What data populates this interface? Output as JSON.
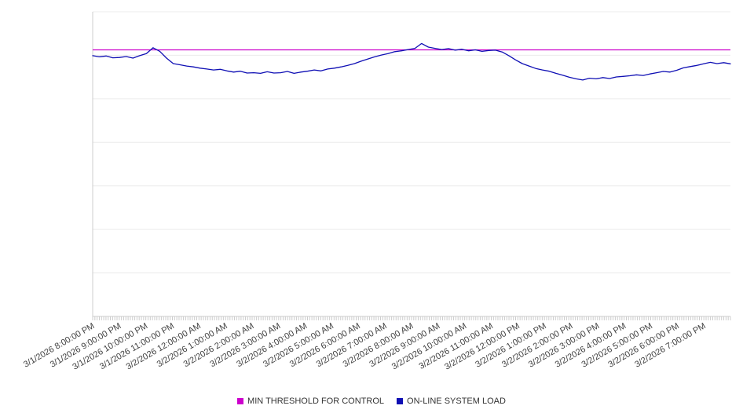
{
  "chart_data": {
    "type": "line",
    "title": "",
    "xlabel": "",
    "ylabel": "",
    "y_axis_visible": false,
    "ylim": [
      0,
      100
    ],
    "grid": {
      "horizontal_divisions": 7,
      "vertical": false,
      "minor_x_ticks": 288
    },
    "legend_position": "bottom",
    "x_label_rotation_deg": -30,
    "x_categories": [
      "3/1/2026 8:00:00 PM",
      "3/1/2026 9:00:00 PM",
      "3/1/2026 10:00:00 PM",
      "3/1/2026 11:00:00 PM",
      "3/2/2026 12:00:00 AM",
      "3/2/2026 1:00:00 AM",
      "3/2/2026 2:00:00 AM",
      "3/2/2026 3:00:00 AM",
      "3/2/2026 4:00:00 AM",
      "3/2/2026 5:00:00 AM",
      "3/2/2026 6:00:00 AM",
      "3/2/2026 7:00:00 AM",
      "3/2/2026 8:00:00 AM",
      "3/2/2026 9:00:00 AM",
      "3/2/2026 10:00:00 AM",
      "3/2/2026 11:00:00 AM",
      "3/2/2026 12:00:00 PM",
      "3/2/2026 1:00:00 PM",
      "3/2/2026 2:00:00 PM",
      "3/2/2026 3:00:00 PM",
      "3/2/2026 4:00:00 PM",
      "3/2/2026 5:00:00 PM",
      "3/2/2026 6:00:00 PM",
      "3/2/2026 7:00:00 PM"
    ],
    "series": [
      {
        "name": "MIN THRESHOLD FOR CONTROL",
        "color": "#cc00cc",
        "style": "constant-horizontal-line",
        "value": 87.5
      },
      {
        "name": "ON-LINE SYSTEM LOAD",
        "color": "#0f0fb4",
        "points_per_category": 4,
        "values": [
          85.6,
          85.2,
          85.5,
          84.9,
          85.0,
          85.3,
          84.8,
          85.6,
          86.3,
          88.2,
          87.0,
          84.8,
          83.0,
          82.6,
          82.2,
          81.9,
          81.5,
          81.2,
          80.9,
          81.1,
          80.6,
          80.2,
          80.5,
          79.9,
          80.0,
          79.8,
          80.3,
          79.9,
          80.0,
          80.4,
          79.8,
          80.2,
          80.5,
          80.9,
          80.6,
          81.2,
          81.5,
          81.9,
          82.4,
          83.0,
          83.8,
          84.5,
          85.2,
          85.8,
          86.3,
          86.9,
          87.2,
          87.6,
          88.0,
          89.6,
          88.4,
          88.0,
          87.6,
          87.9,
          87.4,
          87.7,
          87.2,
          87.5,
          87.0,
          87.3,
          87.4,
          86.8,
          85.6,
          84.2,
          83.0,
          82.2,
          81.4,
          80.9,
          80.5,
          79.8,
          79.2,
          78.5,
          78.0,
          77.6,
          78.2,
          78.0,
          78.4,
          78.1,
          78.6,
          78.8,
          79.0,
          79.3,
          79.1,
          79.6,
          80.0,
          80.4,
          80.2,
          80.8,
          81.6,
          82.0,
          82.4,
          82.9,
          83.4,
          83.0,
          83.3,
          82.9
        ]
      }
    ],
    "colors": {
      "gridline": "#ececec",
      "axis": "#cccccc",
      "tick": "#cccccc",
      "label_text": "#3f3f3f"
    }
  }
}
